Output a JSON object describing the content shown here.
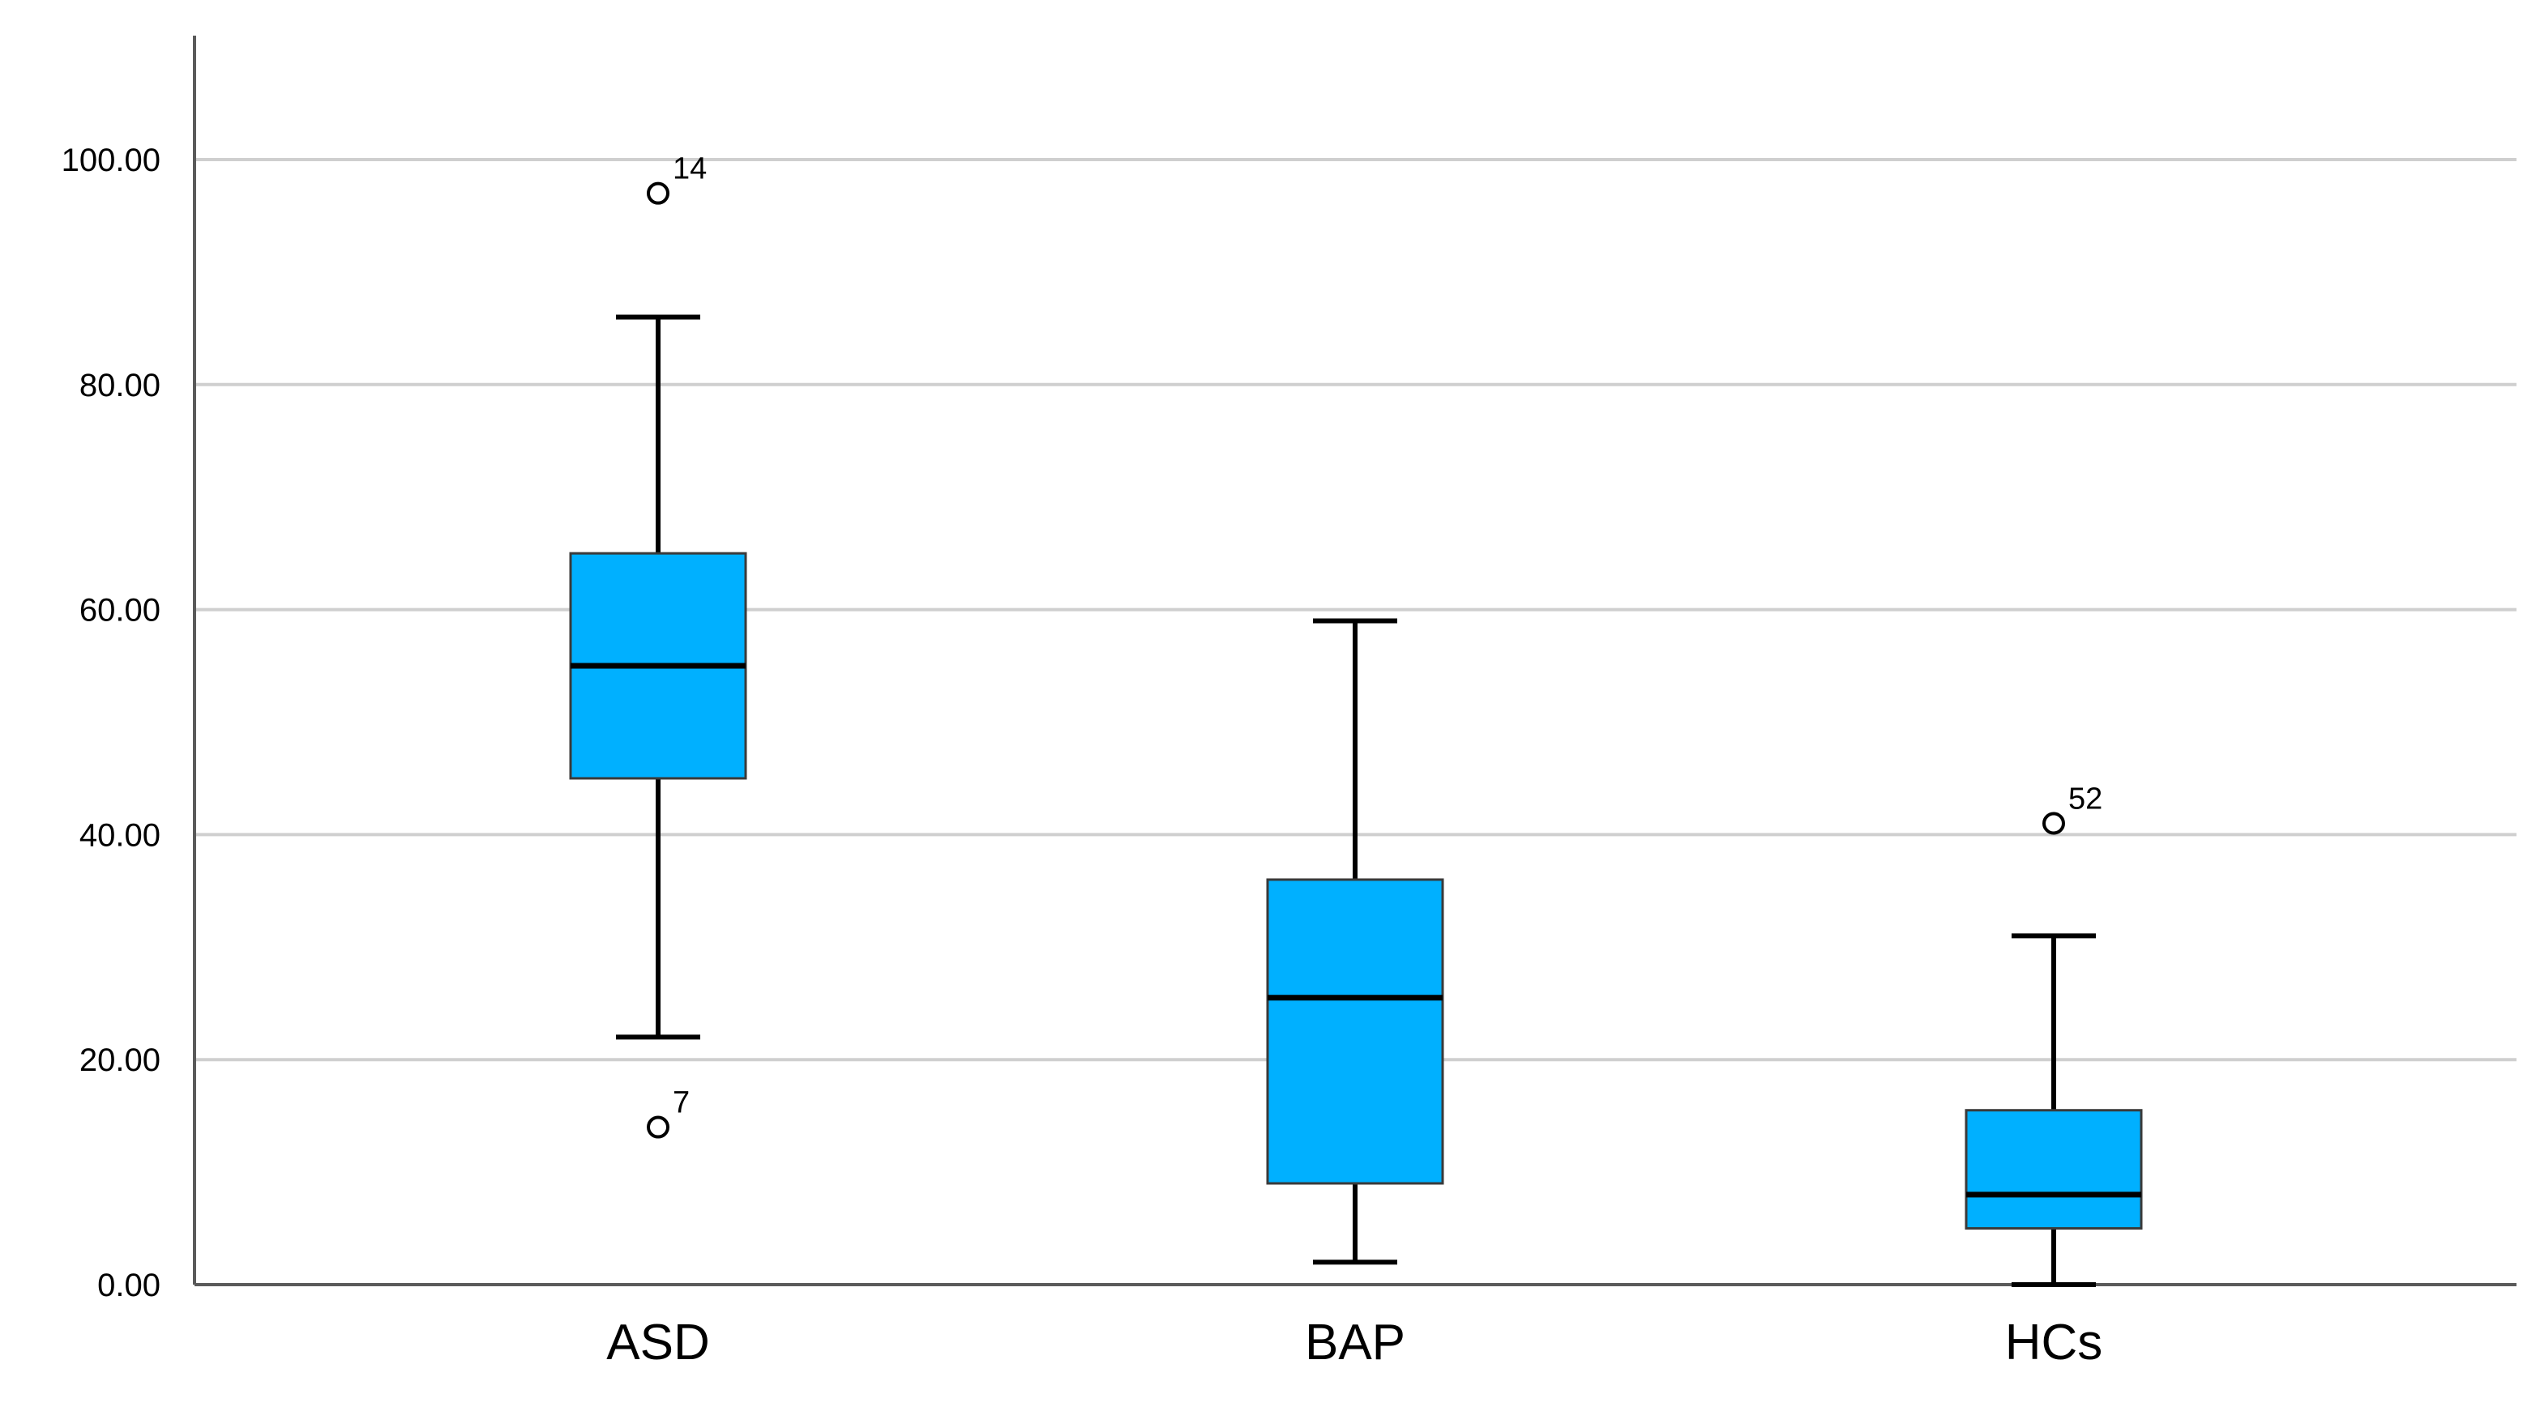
{
  "chart_data": {
    "type": "boxplot",
    "categories": [
      "ASD",
      "BAP",
      "HCs"
    ],
    "ylim": [
      0,
      110
    ],
    "yticks": [
      0,
      20,
      40,
      60,
      80,
      100
    ],
    "ytick_labels": [
      "0.00",
      "20.00",
      "40.00",
      "60.00",
      "80.00",
      "100.00"
    ],
    "grid": true,
    "box_color": "#00b0ff",
    "boxes": [
      {
        "category": "ASD",
        "whisker_low": 22,
        "q1": 45,
        "median": 55,
        "q3": 65,
        "whisker_high": 86,
        "outliers": [
          {
            "value": 97,
            "label": "14"
          },
          {
            "value": 14,
            "label": "7"
          }
        ]
      },
      {
        "category": "BAP",
        "whisker_low": 2,
        "q1": 9,
        "median": 25.5,
        "q3": 36,
        "whisker_high": 59,
        "outliers": []
      },
      {
        "category": "HCs",
        "whisker_low": 0,
        "q1": 5,
        "median": 8,
        "q3": 15.5,
        "whisker_high": 31,
        "outliers": [
          {
            "value": 41,
            "label": "52"
          }
        ]
      }
    ]
  }
}
